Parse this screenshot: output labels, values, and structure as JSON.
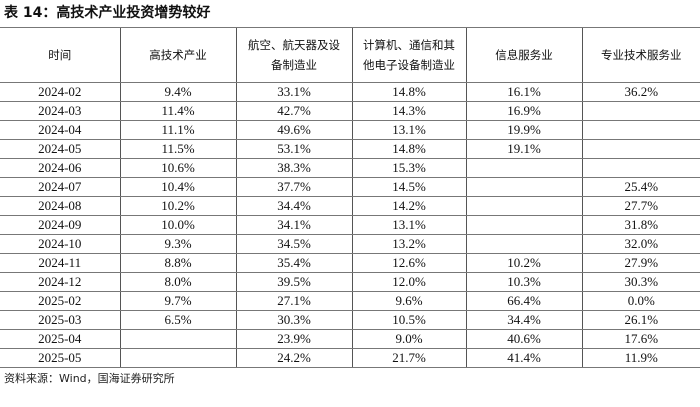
{
  "title": "表 14：高技术产业投资增势较好",
  "headers": [
    "时间",
    "高技术产业",
    "航空、航天器及设备制造业",
    "计算机、通信和其他电子设备制造业",
    "信息服务业",
    "专业技术服务业"
  ],
  "rows": [
    [
      "2024-02",
      "9.4%",
      "33.1%",
      "14.8%",
      "16.1%",
      "36.2%"
    ],
    [
      "2024-03",
      "11.4%",
      "42.7%",
      "14.3%",
      "16.9%",
      ""
    ],
    [
      "2024-04",
      "11.1%",
      "49.6%",
      "13.1%",
      "19.9%",
      ""
    ],
    [
      "2024-05",
      "11.5%",
      "53.1%",
      "14.8%",
      "19.1%",
      ""
    ],
    [
      "2024-06",
      "10.6%",
      "38.3%",
      "15.3%",
      "",
      ""
    ],
    [
      "2024-07",
      "10.4%",
      "37.7%",
      "14.5%",
      "",
      "25.4%"
    ],
    [
      "2024-08",
      "10.2%",
      "34.4%",
      "14.2%",
      "",
      "27.7%"
    ],
    [
      "2024-09",
      "10.0%",
      "34.1%",
      "13.1%",
      "",
      "31.8%"
    ],
    [
      "2024-10",
      "9.3%",
      "34.5%",
      "13.2%",
      "",
      "32.0%"
    ],
    [
      "2024-11",
      "8.8%",
      "35.4%",
      "12.6%",
      "10.2%",
      "27.9%"
    ],
    [
      "2024-12",
      "8.0%",
      "39.5%",
      "12.0%",
      "10.3%",
      "30.3%"
    ],
    [
      "2025-02",
      "9.7%",
      "27.1%",
      "9.6%",
      "66.4%",
      "0.0%"
    ],
    [
      "2025-03",
      "6.5%",
      "30.3%",
      "10.5%",
      "34.4%",
      "26.1%"
    ],
    [
      "2025-04",
      "",
      "23.9%",
      "9.0%",
      "40.6%",
      "17.6%"
    ],
    [
      "2025-05",
      "",
      "24.2%",
      "21.7%",
      "41.4%",
      "11.9%"
    ]
  ],
  "source": "资料来源：Wind，国海证券研究所"
}
